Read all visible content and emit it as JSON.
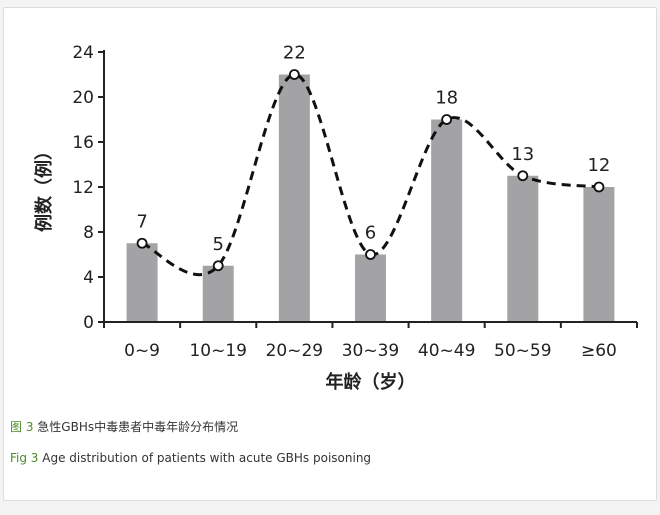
{
  "chart_data": {
    "type": "bar",
    "categories": [
      "0~9",
      "10~19",
      "20~29",
      "30~39",
      "40~49",
      "50~59",
      "≥60"
    ],
    "values": [
      7,
      5,
      22,
      6,
      18,
      13,
      12
    ],
    "data_labels": [
      "7",
      "5",
      "22",
      "6",
      "18",
      "13",
      "12"
    ],
    "overlay": "dashed smooth line with open circle markers through bar tops",
    "ylabel": "例数（例）",
    "xlabel": "年龄（岁）",
    "ylim": [
      0,
      24
    ],
    "yticks": [
      "0",
      "4",
      "8",
      "12",
      "16",
      "20",
      "24"
    ],
    "grid": false,
    "legend": "none"
  },
  "colors": {
    "bar": "#a3a3a5",
    "axis": "#222222",
    "line": "#111111",
    "caption_tag": "#4e8b2a"
  },
  "caption": {
    "cn_tag": "图 3",
    "cn_text": "急性GBHs中毒患者中毒年龄分布情况",
    "en_tag": "Fig 3",
    "en_text": "Age distribution of patients with acute GBHs poisoning"
  }
}
